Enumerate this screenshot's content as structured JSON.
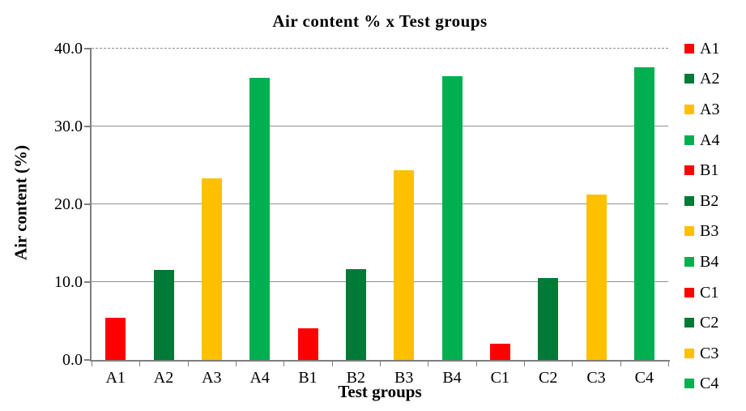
{
  "chart_data": {
    "type": "bar",
    "title": "Air content % x Test groups",
    "xlabel": "Test groups",
    "ylabel": "Air content (%)",
    "categories": [
      "A1",
      "A2",
      "A3",
      "A4",
      "B1",
      "B2",
      "B3",
      "B4",
      "C1",
      "C2",
      "C3",
      "C4"
    ],
    "values": [
      5.4,
      11.6,
      23.3,
      36.2,
      4.1,
      11.7,
      24.4,
      36.5,
      2.1,
      10.5,
      21.2,
      37.6
    ],
    "bar_colors": [
      "#FF0000",
      "#007A37",
      "#FFC000",
      "#00B050",
      "#FF0000",
      "#007A37",
      "#FFC000",
      "#00B050",
      "#FF0000",
      "#007A37",
      "#FFC000",
      "#00B050"
    ],
    "ylim": [
      0,
      40
    ],
    "ytick_labels_top_down": [
      "40.0",
      "30.0",
      "20.0",
      "10.0",
      "0.0"
    ],
    "grid": true,
    "top_gridline_style": "dashed",
    "legend_position": "right",
    "legend": [
      {
        "label": "A1",
        "color": "#FF0000"
      },
      {
        "label": "A2",
        "color": "#007A37"
      },
      {
        "label": "A3",
        "color": "#FFC000"
      },
      {
        "label": "A4",
        "color": "#00B050"
      },
      {
        "label": "B1",
        "color": "#FF0000"
      },
      {
        "label": "B2",
        "color": "#007A37"
      },
      {
        "label": "B3",
        "color": "#FFC000"
      },
      {
        "label": "B4",
        "color": "#00B050"
      },
      {
        "label": "C1",
        "color": "#FF0000"
      },
      {
        "label": "C2",
        "color": "#007A37"
      },
      {
        "label": "C3",
        "color": "#FFC000"
      },
      {
        "label": "C4",
        "color": "#00B050"
      }
    ],
    "axis_color": "#808080",
    "grid_color": "#909090"
  }
}
